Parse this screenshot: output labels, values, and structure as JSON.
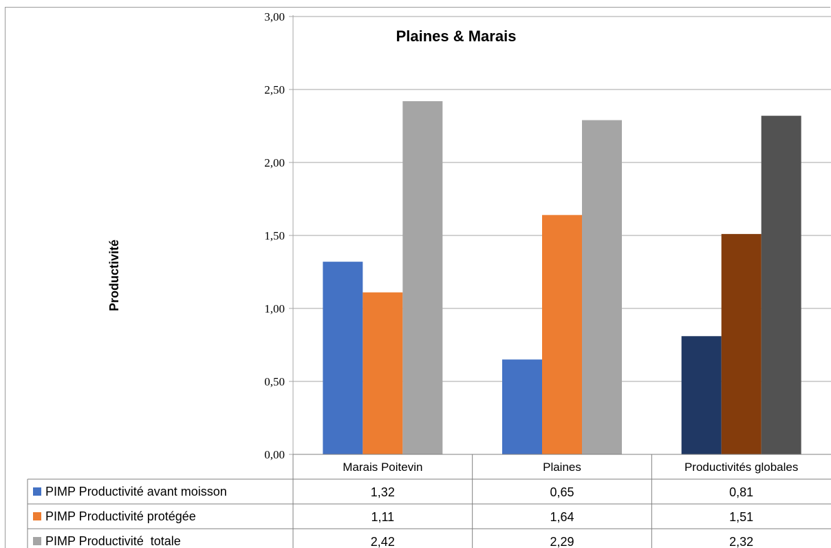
{
  "chart_data": {
    "type": "bar",
    "title": "Plaines & Marais",
    "ylabel": "Productivité",
    "xlabel": "",
    "ylim": [
      0,
      3
    ],
    "yticks": [
      "0,00",
      "0,50",
      "1,00",
      "1,50",
      "2,00",
      "2,50",
      "3,00"
    ],
    "grid": true,
    "legend_placement": "data-table",
    "categories": [
      "Marais Poitevin",
      "Plaines",
      "Productivités globales"
    ],
    "series": [
      {
        "name": "PIMP Productivité avant moisson",
        "values": [
          1.32,
          0.65,
          0.81
        ],
        "labels": [
          "1,32",
          "0,65",
          "0,81"
        ],
        "color": "#4472C4",
        "colors": [
          "#4472C4",
          "#4472C4",
          "#203864"
        ]
      },
      {
        "name": "PIMP Productivité protégée",
        "values": [
          1.11,
          1.64,
          1.51
        ],
        "labels": [
          "1,11",
          "1,64",
          "1,51"
        ],
        "color": "#ED7D31",
        "colors": [
          "#ED7D31",
          "#ED7D31",
          "#843C0C"
        ]
      },
      {
        "name": "PIMP Productivité  totale",
        "values": [
          2.42,
          2.29,
          2.32
        ],
        "labels": [
          "2,42",
          "2,29",
          "2,32"
        ],
        "color": "#A5A5A5",
        "colors": [
          "#A5A5A5",
          "#A5A5A5",
          "#525252"
        ]
      }
    ]
  }
}
